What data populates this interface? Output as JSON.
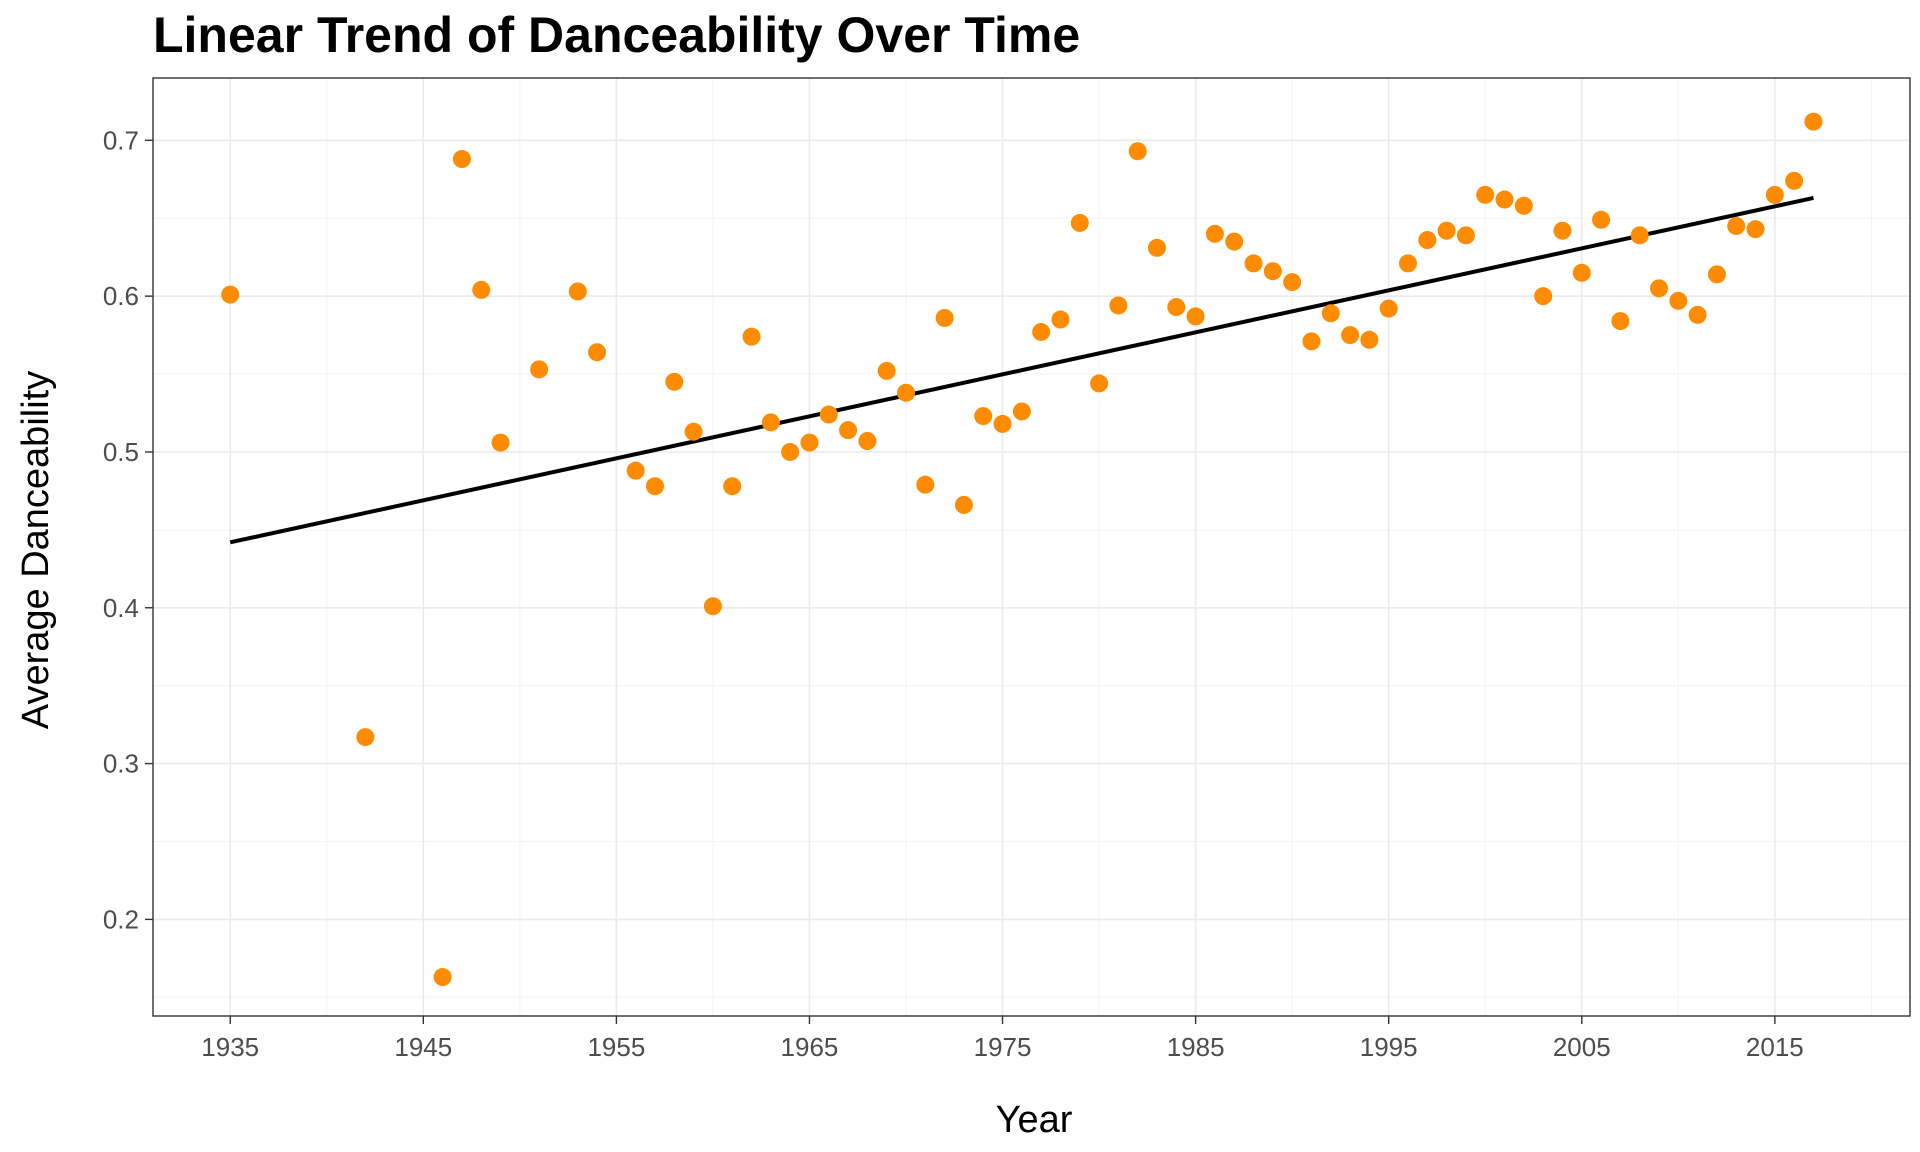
{
  "chart_data": {
    "type": "scatter",
    "title": "Linear Trend of Danceability Over Time",
    "xlabel": "Year",
    "ylabel": "Average Danceability",
    "xlim": [
      1931,
      2022
    ],
    "ylim": [
      0.138,
      0.74
    ],
    "x_ticks": [
      1935,
      1945,
      1955,
      1965,
      1975,
      1985,
      1995,
      2005,
      2015
    ],
    "x_tick_labels": [
      "1935",
      "1945",
      "1955",
      "1965",
      "1975",
      "1985",
      "1995",
      "2005",
      "2015"
    ],
    "y_ticks": [
      0.2,
      0.3,
      0.4,
      0.5,
      0.6,
      0.7
    ],
    "y_tick_labels": [
      "0.2",
      "0.3",
      "0.4",
      "0.5",
      "0.6",
      "0.7"
    ],
    "grid": true,
    "legend": "none",
    "point_color": "#ff8c00",
    "line_color": "#000000",
    "trend_line": {
      "x": [
        1935,
        2017
      ],
      "y": [
        0.442,
        0.663
      ]
    },
    "series": [
      {
        "x": [
          1935,
          1942,
          1946,
          1947,
          1948,
          1949,
          1951,
          1953,
          1954,
          1956,
          1957,
          1958,
          1959,
          1960,
          1961,
          1962,
          1963,
          1964,
          1965,
          1966,
          1967,
          1968,
          1969,
          1970,
          1971,
          1972,
          1973,
          1974,
          1975,
          1976,
          1977,
          1978,
          1979,
          1980,
          1981,
          1982,
          1983,
          1984,
          1985,
          1986,
          1987,
          1988,
          1989,
          1990,
          1991,
          1992,
          1993,
          1994,
          1995,
          1996,
          1997,
          1998,
          1999,
          2000,
          2001,
          2002,
          2003,
          2004,
          2005,
          2006,
          2007,
          2008,
          2009,
          2010,
          2011,
          2012,
          2013,
          2014,
          2015,
          2016,
          2017
        ],
        "y": [
          0.601,
          0.317,
          0.163,
          0.688,
          0.604,
          0.506,
          0.553,
          0.603,
          0.564,
          0.488,
          0.478,
          0.545,
          0.513,
          0.401,
          0.478,
          0.574,
          0.519,
          0.5,
          0.506,
          0.524,
          0.514,
          0.507,
          0.552,
          0.538,
          0.479,
          0.586,
          0.466,
          0.523,
          0.518,
          0.526,
          0.577,
          0.585,
          0.647,
          0.544,
          0.594,
          0.693,
          0.631,
          0.593,
          0.587,
          0.64,
          0.635,
          0.621,
          0.616,
          0.609,
          0.571,
          0.589,
          0.575,
          0.572,
          0.592,
          0.621,
          0.636,
          0.642,
          0.639,
          0.665,
          0.662,
          0.658,
          0.6,
          0.642,
          0.615,
          0.649,
          0.584,
          0.639,
          0.605,
          0.597,
          0.588,
          0.614,
          0.645,
          0.643,
          0.665,
          0.674,
          0.712
        ]
      }
    ]
  }
}
